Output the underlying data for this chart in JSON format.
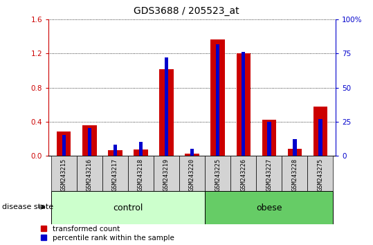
{
  "title": "GDS3688 / 205523_at",
  "categories": [
    "GSM243215",
    "GSM243216",
    "GSM243217",
    "GSM243218",
    "GSM243219",
    "GSM243220",
    "GSM243225",
    "GSM243226",
    "GSM243227",
    "GSM243228",
    "GSM243275"
  ],
  "red_values": [
    0.28,
    0.36,
    0.06,
    0.07,
    1.02,
    0.02,
    1.37,
    1.2,
    0.42,
    0.08,
    0.58
  ],
  "blue_values_pct": [
    15,
    20,
    8,
    10,
    72,
    5,
    82,
    76,
    25,
    12,
    27
  ],
  "n_control": 6,
  "n_obese": 5,
  "ylim_left": [
    0,
    1.6
  ],
  "ylim_right": [
    0,
    100
  ],
  "yticks_left": [
    0,
    0.4,
    0.8,
    1.2,
    1.6
  ],
  "yticks_right": [
    0,
    25,
    50,
    75,
    100
  ],
  "ytick_labels_right": [
    "0",
    "25",
    "50",
    "75",
    "100%"
  ],
  "left_axis_color": "#cc0000",
  "right_axis_color": "#0000cc",
  "bar_red": "#cc0000",
  "bar_blue": "#0000cc",
  "control_box_color": "#ccffcc",
  "obese_box_color": "#66cc66",
  "tick_bg_color": "#d3d3d3",
  "red_bar_width": 0.55,
  "blue_bar_width": 0.15,
  "legend_red_label": "transformed count",
  "legend_blue_label": "percentile rank within the sample",
  "disease_state_label": "disease state",
  "control_label": "control",
  "obese_label": "obese"
}
